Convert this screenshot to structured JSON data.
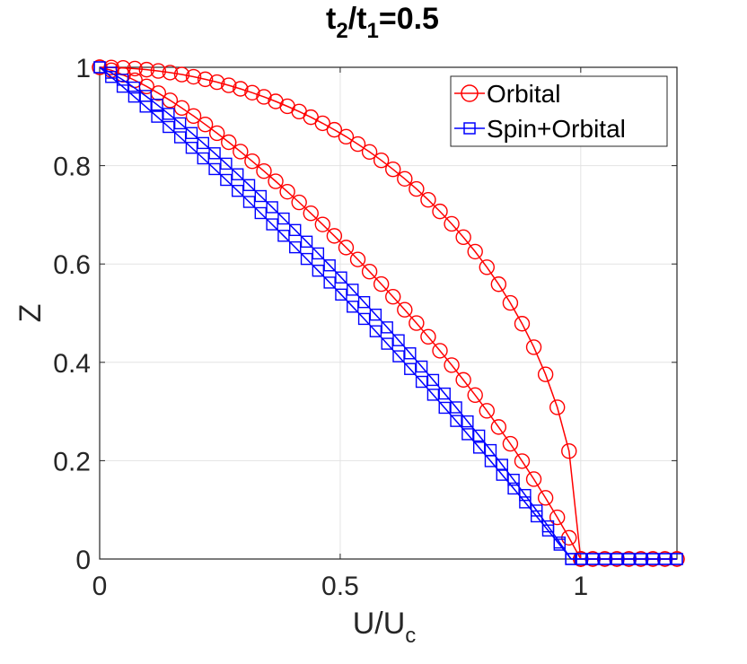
{
  "chart_data": {
    "type": "line",
    "title": {
      "base1": "t",
      "sub1": "2",
      "slash": "/",
      "base2": "t",
      "sub2": "1",
      "value": "=0.5"
    },
    "xlabel": {
      "base": "U/U",
      "sub": "c"
    },
    "ylabel": "Z",
    "xlim": [
      0,
      1.2
    ],
    "ylim": [
      0,
      1
    ],
    "grid": true,
    "legend_position": "top-right",
    "xticks": [
      0,
      0.5,
      1
    ],
    "xtick_labels": [
      "0",
      "0.5",
      "1"
    ],
    "yticks": [
      0,
      0.2,
      0.4,
      0.6,
      0.8,
      1
    ],
    "ytick_labels": [
      "0",
      "0.2",
      "0.4",
      "0.6",
      "0.8",
      "1"
    ],
    "series": [
      {
        "name": "Orbital",
        "color": "#ff0000",
        "marker": "circle",
        "curves": [
          {
            "kind": "sqrt",
            "x_end": 1.0,
            "jump_to": 0
          },
          {
            "kind": "quad",
            "x_end": 1.0,
            "jump_to": 0
          }
        ]
      },
      {
        "name": "Spin+Orbital",
        "color": "#0000ff",
        "marker": "square",
        "curves": [
          {
            "kind": "lin_ish",
            "x_end": 0.98,
            "jump_to": 0
          },
          {
            "kind": "quad_shift",
            "x_end": 0.98,
            "jump_to": 0
          }
        ]
      }
    ]
  }
}
